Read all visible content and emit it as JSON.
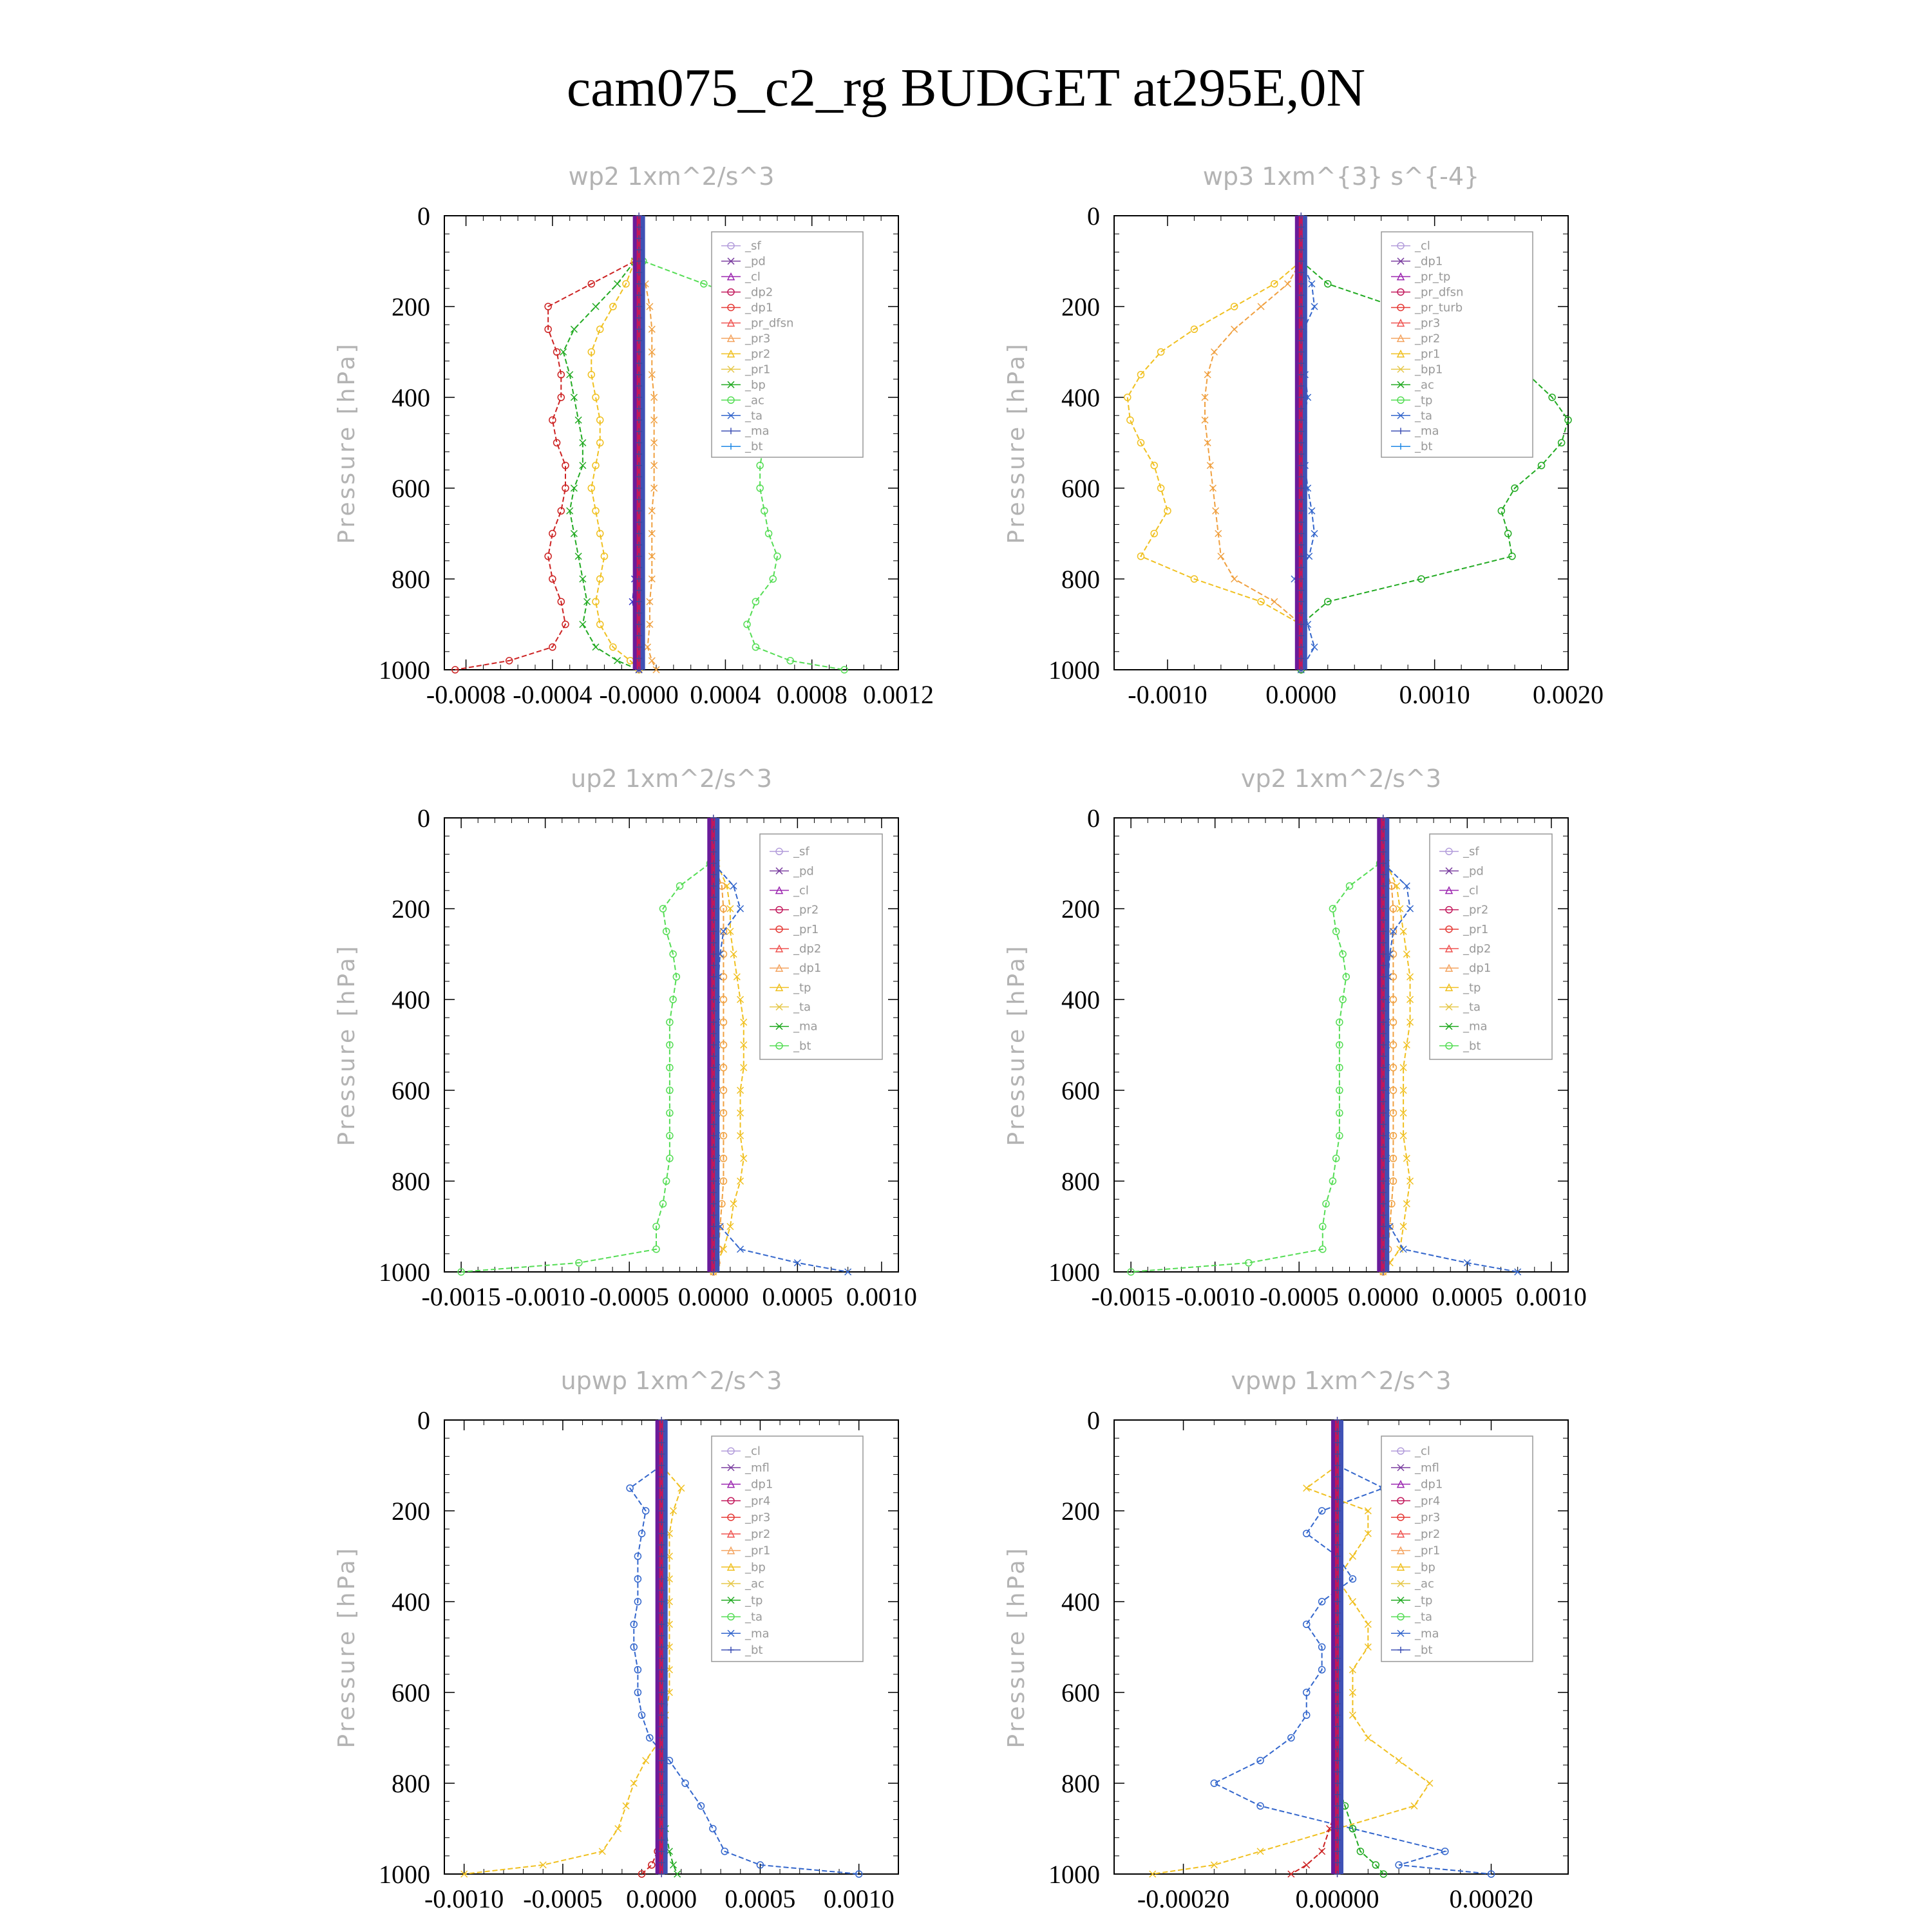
{
  "figure": {
    "title": "cam075_c2_rg  BUDGET at295E,0N"
  },
  "chart_data": [
    {
      "type": "line",
      "title": "wp2   1xm^2/s^3",
      "ylabel": "Pressure [hPa]",
      "ylim": [
        1000,
        0
      ],
      "yticks": [
        "0",
        "200",
        "400",
        "600",
        "800",
        "1000"
      ],
      "xlim": [
        -0.0009,
        0.0012
      ],
      "xticks": [
        -0.0008,
        -0.0004,
        0.0,
        0.0004,
        0.0008,
        0.0012
      ],
      "xticklabels": [
        "-0.0008",
        "-0.0004",
        "-0.0000",
        "0.0004",
        "0.0008",
        "0.0012"
      ],
      "legend_position": "top-right",
      "legend": [
        "_sf",
        "_pd",
        "_cl",
        "_dp2",
        "_dp1",
        "_pr_dfsn",
        "_pr3",
        "_pr2",
        "_pr1",
        "_bp",
        "_ac",
        "_ta",
        "_ma",
        "_bt"
      ],
      "pressure": [
        100,
        150,
        200,
        250,
        300,
        350,
        400,
        450,
        500,
        550,
        600,
        650,
        700,
        750,
        800,
        850,
        900,
        950,
        980,
        1000
      ],
      "series": [
        {
          "name": "_dp2",
          "color": "#cc2222",
          "values": [
            -2e-05,
            -0.00022,
            -0.00042,
            -0.00042,
            -0.00038,
            -0.00036,
            -0.00036,
            -0.0004,
            -0.00038,
            -0.00034,
            -0.00034,
            -0.00036,
            -0.0004,
            -0.00042,
            -0.0004,
            -0.00036,
            -0.00034,
            -0.0004,
            -0.0006,
            -0.00085
          ]
        },
        {
          "name": "_pr1",
          "color": "#22aa22",
          "values": [
            -2e-05,
            -0.0001,
            -0.0002,
            -0.0003,
            -0.00035,
            -0.00032,
            -0.0003,
            -0.00028,
            -0.00026,
            -0.00026,
            -0.0003,
            -0.00032,
            -0.0003,
            -0.00028,
            -0.00026,
            -0.00024,
            -0.00026,
            -0.0002,
            -0.0001,
            0.0
          ]
        },
        {
          "name": "_pr2",
          "color": "#f0c020",
          "values": [
            -2e-05,
            -6e-05,
            -0.00012,
            -0.00018,
            -0.00022,
            -0.00022,
            -0.0002,
            -0.00018,
            -0.00018,
            -0.0002,
            -0.00022,
            -0.0002,
            -0.00018,
            -0.00016,
            -0.00018,
            -0.0002,
            -0.00018,
            -0.00012,
            -4e-05,
            0.0
          ]
        },
        {
          "name": "_pr3",
          "color": "#f0a040",
          "values": [
            0.0,
            3e-05,
            5e-05,
            6e-05,
            6e-05,
            6e-05,
            7e-05,
            7e-05,
            7e-05,
            7e-05,
            7e-05,
            6e-05,
            6e-05,
            6e-05,
            6e-05,
            5e-05,
            5e-05,
            4e-05,
            6e-05,
            8e-05
          ]
        },
        {
          "name": "_bp",
          "color": "#55dd55",
          "values": [
            2e-05,
            0.0003,
            0.0006,
            0.0005,
            0.00058,
            0.0006,
            0.00062,
            0.0006,
            0.00058,
            0.00056,
            0.00056,
            0.00058,
            0.0006,
            0.00064,
            0.00062,
            0.00054,
            0.0005,
            0.00054,
            0.0007,
            0.00095
          ]
        },
        {
          "name": "_ta",
          "color": "#3333cc",
          "values": [
            0.0,
            0.0,
            0.0,
            0.0,
            0.0,
            0.0,
            0.0,
            0.0,
            0.0,
            0.0,
            0.0,
            0.0,
            0.0,
            0.0,
            -2e-05,
            -3e-05,
            -1e-05,
            0.0,
            0.0,
            0.0
          ]
        }
      ]
    },
    {
      "type": "line",
      "title": "wp3   1xm^{3} s^{-4}",
      "ylabel": "Pressure [hPa]",
      "ylim": [
        1000,
        0
      ],
      "yticks": [
        "0",
        "200",
        "400",
        "600",
        "800",
        "1000"
      ],
      "xlim": [
        -0.0014,
        0.002
      ],
      "xticks": [
        -0.001,
        0.0,
        0.001,
        0.002
      ],
      "xticklabels": [
        "-0.0010",
        "0.0000",
        "0.0010",
        "0.0020"
      ],
      "legend_position": "top-right",
      "legend": [
        "_cl",
        "_dp1",
        "_pr_tp",
        "_pr_dfsn",
        "_pr_turb",
        "_pr3",
        "_pr2",
        "_pr1",
        "_bp1",
        "_ac",
        "_tp",
        "_ta",
        "_ma",
        "_bt"
      ],
      "pressure": [
        100,
        150,
        200,
        250,
        300,
        350,
        400,
        450,
        500,
        550,
        600,
        650,
        700,
        750,
        800,
        850,
        900,
        950,
        1000
      ],
      "series": [
        {
          "name": "_pr1",
          "color": "#f0c020",
          "values": [
            0.0,
            -0.0002,
            -0.0005,
            -0.0008,
            -0.00105,
            -0.0012,
            -0.0013,
            -0.00128,
            -0.0012,
            -0.0011,
            -0.00105,
            -0.001,
            -0.0011,
            -0.0012,
            -0.0008,
            -0.0003,
            0.0,
            0.0,
            0.0
          ]
        },
        {
          "name": "_pr2",
          "color": "#f0a040",
          "values": [
            0.0,
            -0.0001,
            -0.0003,
            -0.0005,
            -0.00065,
            -0.0007,
            -0.00072,
            -0.00072,
            -0.0007,
            -0.00068,
            -0.00066,
            -0.00064,
            -0.00062,
            -0.0006,
            -0.0005,
            -0.0002,
            0.0,
            0.0,
            0.0
          ]
        },
        {
          "name": "_bp1",
          "color": "#22aa22",
          "values": [
            0.0,
            0.0002,
            0.0007,
            0.0011,
            0.00145,
            0.0017,
            0.00188,
            0.002,
            0.00195,
            0.0018,
            0.0016,
            0.0015,
            0.00155,
            0.00158,
            0.0009,
            0.0002,
            0.0,
            0.0,
            0.0
          ]
        },
        {
          "name": "_tp",
          "color": "#3366cc",
          "values": [
            0.0,
            8e-05,
            0.0001,
            2e-05,
            0.0,
            3e-05,
            5e-05,
            2e-05,
            0.0,
            3e-05,
            5e-05,
            8e-05,
            0.0001,
            6e-05,
            -5e-05,
            0.0,
            5e-05,
            0.0001,
            0.0
          ]
        }
      ]
    },
    {
      "type": "line",
      "title": "up2   1xm^2/s^3",
      "ylabel": "Pressure [hPa]",
      "ylim": [
        1000,
        0
      ],
      "yticks": [
        "0",
        "200",
        "400",
        "600",
        "800",
        "1000"
      ],
      "xlim": [
        -0.0016,
        0.0011
      ],
      "xticks": [
        -0.0015,
        -0.001,
        -0.0005,
        0.0,
        0.0005,
        0.001
      ],
      "xticklabels": [
        "-0.0015",
        "-0.0010",
        "-0.0005",
        "0.0000",
        "0.0005",
        "0.0010"
      ],
      "legend_position": "top-right",
      "legend": [
        "_sf",
        "_pd",
        "_cl",
        "_pr2",
        "_pr1",
        "_dp2",
        "_dp1",
        "_tp",
        "_ta",
        "_ma",
        "_bt"
      ],
      "pressure": [
        100,
        150,
        200,
        250,
        300,
        350,
        400,
        450,
        500,
        550,
        600,
        650,
        700,
        750,
        800,
        850,
        900,
        950,
        980,
        1000
      ],
      "series": [
        {
          "name": "_dp1",
          "color": "#55dd55",
          "values": [
            -2e-05,
            -0.0002,
            -0.0003,
            -0.00028,
            -0.00024,
            -0.00022,
            -0.00024,
            -0.00026,
            -0.00026,
            -0.00026,
            -0.00026,
            -0.00026,
            -0.00026,
            -0.00026,
            -0.00028,
            -0.0003,
            -0.00034,
            -0.00034,
            -0.0008,
            -0.0015
          ]
        },
        {
          "name": "_pr1",
          "color": "#f0c020",
          "values": [
            2e-05,
            8e-05,
            0.0001,
            0.0001,
            0.00012,
            0.00014,
            0.00016,
            0.00018,
            0.00018,
            0.00018,
            0.00016,
            0.00016,
            0.00016,
            0.00018,
            0.00016,
            0.00012,
            0.0001,
            6e-05,
            2e-05,
            0.0
          ]
        },
        {
          "name": "_pr2",
          "color": "#f0a040",
          "values": [
            0.0,
            5e-05,
            6e-05,
            6e-05,
            6e-05,
            6e-05,
            6e-05,
            6e-05,
            6e-05,
            6e-05,
            6e-05,
            6e-05,
            6e-05,
            6e-05,
            6e-05,
            5e-05,
            4e-05,
            3e-05,
            2e-05,
            0.0
          ]
        },
        {
          "name": "_tp",
          "color": "#3366cc",
          "values": [
            0.0,
            0.00012,
            0.00016,
            6e-05,
            4e-05,
            3e-05,
            2e-05,
            2e-05,
            2e-05,
            2e-05,
            2e-05,
            2e-05,
            2e-05,
            2e-05,
            2e-05,
            0.0,
            4e-05,
            0.00016,
            0.0005,
            0.0008
          ]
        }
      ]
    },
    {
      "type": "line",
      "title": "vp2   1xm^2/s^3",
      "ylabel": "Pressure [hPa]",
      "ylim": [
        1000,
        0
      ],
      "yticks": [
        "0",
        "200",
        "400",
        "600",
        "800",
        "1000"
      ],
      "xlim": [
        -0.0016,
        0.0011
      ],
      "xticks": [
        -0.0015,
        -0.001,
        -0.0005,
        0.0,
        0.0005,
        0.001
      ],
      "xticklabels": [
        "-0.0015",
        "-0.0010",
        "-0.0005",
        "0.0000",
        "0.0005",
        "0.0010"
      ],
      "legend_position": "top-right",
      "legend": [
        "_sf",
        "_pd",
        "_cl",
        "_pr2",
        "_pr1",
        "_dp2",
        "_dp1",
        "_tp",
        "_ta",
        "_ma",
        "_bt"
      ],
      "pressure": [
        100,
        150,
        200,
        250,
        300,
        350,
        400,
        450,
        500,
        550,
        600,
        650,
        700,
        750,
        800,
        850,
        900,
        950,
        980,
        1000
      ],
      "series": [
        {
          "name": "_dp1",
          "color": "#55dd55",
          "values": [
            -2e-05,
            -0.0002,
            -0.0003,
            -0.00028,
            -0.00024,
            -0.00022,
            -0.00024,
            -0.00026,
            -0.00026,
            -0.00026,
            -0.00026,
            -0.00026,
            -0.00026,
            -0.00028,
            -0.0003,
            -0.00034,
            -0.00036,
            -0.00036,
            -0.0008,
            -0.0015
          ]
        },
        {
          "name": "_pr1",
          "color": "#f0c020",
          "values": [
            2e-05,
            8e-05,
            0.0001,
            0.00012,
            0.00014,
            0.00016,
            0.00016,
            0.00016,
            0.00014,
            0.00012,
            0.00012,
            0.00012,
            0.00012,
            0.00014,
            0.00016,
            0.00014,
            0.00012,
            0.0001,
            4e-05,
            0.0
          ]
        },
        {
          "name": "_pr2",
          "color": "#f0a040",
          "values": [
            0.0,
            5e-05,
            6e-05,
            6e-05,
            6e-05,
            6e-05,
            6e-05,
            6e-05,
            6e-05,
            6e-05,
            6e-05,
            6e-05,
            6e-05,
            6e-05,
            6e-05,
            5e-05,
            4e-05,
            3e-05,
            2e-05,
            0.0
          ]
        },
        {
          "name": "_tp",
          "color": "#3366cc",
          "values": [
            0.0,
            0.00014,
            0.00016,
            6e-05,
            4e-05,
            3e-05,
            2e-05,
            2e-05,
            2e-05,
            2e-05,
            2e-05,
            2e-05,
            2e-05,
            2e-05,
            2e-05,
            0.0,
            4e-05,
            0.00012,
            0.0005,
            0.0008
          ]
        }
      ]
    },
    {
      "type": "line",
      "title": "upwp   1xm^2/s^3",
      "ylabel": "Pressure [hPa]",
      "ylim": [
        1000,
        0
      ],
      "yticks": [
        "0",
        "200",
        "400",
        "600",
        "800",
        "1000"
      ],
      "xlim": [
        -0.0011,
        0.0012
      ],
      "xticks": [
        -0.001,
        -0.0005,
        0.0,
        0.0005,
        0.001
      ],
      "xticklabels": [
        "-0.0010",
        "-0.0005",
        "0.0000",
        "0.0005",
        "0.0010"
      ],
      "legend_position": "top-right",
      "legend": [
        "_cl",
        "_mfl",
        "_dp1",
        "_pr4",
        "_pr3",
        "_pr2",
        "_pr1",
        "_bp",
        "_ac",
        "_tp",
        "_ta",
        "_ma",
        "_bt"
      ],
      "pressure": [
        100,
        150,
        200,
        250,
        300,
        350,
        400,
        450,
        500,
        550,
        600,
        650,
        700,
        750,
        800,
        850,
        900,
        950,
        980,
        1000
      ],
      "series": [
        {
          "name": "_tp",
          "color": "#3366cc",
          "values": [
            0.0,
            -0.00016,
            -8e-05,
            -0.0001,
            -0.00012,
            -0.00012,
            -0.00012,
            -0.00014,
            -0.00014,
            -0.00012,
            -0.00012,
            -0.0001,
            -6e-05,
            4e-05,
            0.00012,
            0.0002,
            0.00026,
            0.00032,
            0.0005,
            0.001
          ]
        },
        {
          "name": "_pr1",
          "color": "#f0c020",
          "values": [
            0.0,
            0.0001,
            6e-05,
            4e-05,
            4e-05,
            4e-05,
            4e-05,
            4e-05,
            4e-05,
            4e-05,
            4e-05,
            2e-05,
            0.0,
            -8e-05,
            -0.00014,
            -0.00018,
            -0.00022,
            -0.0003,
            -0.0006,
            -0.001
          ]
        },
        {
          "name": "_pr4",
          "color": "#cc2222",
          "values": [
            0.0,
            0.0,
            0.0,
            0.0,
            0.0,
            0.0,
            0.0,
            0.0,
            0.0,
            0.0,
            0.0,
            0.0,
            0.0,
            0.0,
            0.0,
            0.0,
            0.0,
            -2e-05,
            -5e-05,
            -0.0001
          ]
        },
        {
          "name": "_bp",
          "color": "#22aa22",
          "values": [
            0.0,
            0.0,
            0.0,
            0.0,
            0.0,
            0.0,
            0.0,
            0.0,
            0.0,
            0.0,
            0.0,
            0.0,
            0.0,
            0.0,
            0.0,
            1e-05,
            2e-05,
            4e-05,
            6e-05,
            8e-05
          ]
        }
      ]
    },
    {
      "type": "line",
      "title": "vpwp   1xm^2/s^3",
      "ylabel": "Pressure [hPa]",
      "ylim": [
        1000,
        0
      ],
      "yticks": [
        "0",
        "200",
        "400",
        "600",
        "800",
        "1000"
      ],
      "xlim": [
        -0.00029,
        0.0003
      ],
      "xticks": [
        -0.0002,
        0.0,
        0.0002
      ],
      "xticklabels": [
        "-0.00020",
        "0.00000",
        "0.00020"
      ],
      "legend_position": "top-right",
      "legend": [
        "_cl",
        "_mfl",
        "_dp1",
        "_pr4",
        "_pr3",
        "_pr2",
        "_pr1",
        "_bp",
        "_ac",
        "_tp",
        "_ta",
        "_ma",
        "_bt"
      ],
      "pressure": [
        100,
        150,
        200,
        250,
        300,
        350,
        400,
        450,
        500,
        550,
        600,
        650,
        700,
        750,
        800,
        850,
        900,
        950,
        980,
        1000
      ],
      "series": [
        {
          "name": "_tp",
          "color": "#3366cc",
          "values": [
            0.0,
            6e-05,
            -2e-05,
            -4e-05,
            0.0,
            2e-05,
            -2e-05,
            -4e-05,
            -2e-05,
            -2e-05,
            -4e-05,
            -4e-05,
            -6e-05,
            -0.0001,
            -0.00016,
            -0.0001,
            2e-05,
            0.00014,
            8e-05,
            0.0002
          ]
        },
        {
          "name": "_pr1",
          "color": "#f0c020",
          "values": [
            0.0,
            -4e-05,
            4e-05,
            4e-05,
            2e-05,
            0.0,
            2e-05,
            4e-05,
            4e-05,
            2e-05,
            2e-05,
            2e-05,
            4e-05,
            8e-05,
            0.00012,
            0.0001,
            0.0,
            -0.0001,
            -0.00016,
            -0.00024
          ]
        },
        {
          "name": "_bp",
          "color": "#22aa22",
          "values": [
            0.0,
            0.0,
            0.0,
            0.0,
            0.0,
            0.0,
            0.0,
            0.0,
            0.0,
            0.0,
            0.0,
            0.0,
            0.0,
            0.0,
            0.0,
            1e-05,
            2e-05,
            3e-05,
            5e-05,
            6e-05
          ]
        },
        {
          "name": "_pr4",
          "color": "#cc2222",
          "values": [
            0.0,
            0.0,
            0.0,
            0.0,
            0.0,
            0.0,
            0.0,
            0.0,
            0.0,
            0.0,
            0.0,
            0.0,
            0.0,
            0.0,
            0.0,
            0.0,
            -1e-05,
            -2e-05,
            -4e-05,
            -6e-05
          ]
        }
      ]
    }
  ]
}
